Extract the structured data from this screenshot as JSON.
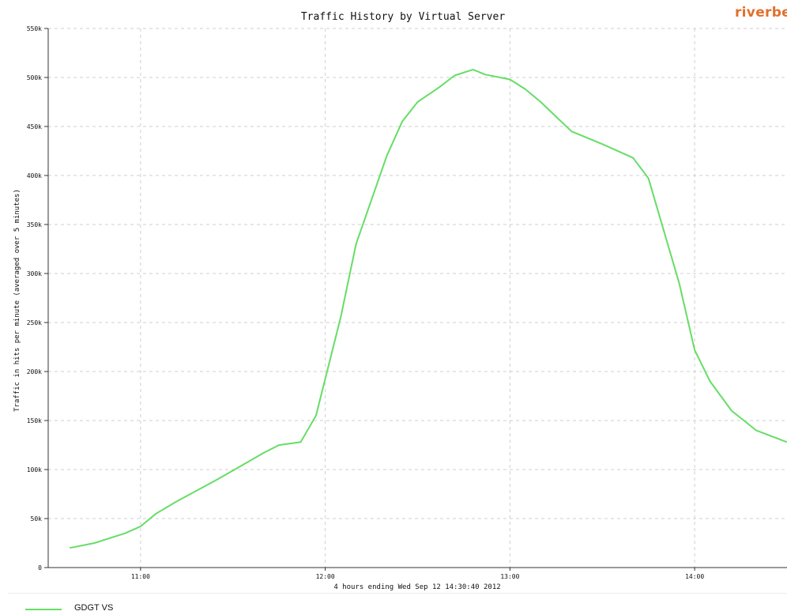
{
  "brand": "riverbed",
  "chart_data": {
    "type": "line",
    "title": "Traffic History by Virtual Server",
    "ylabel": "Traffic in hits per minute (averaged over 5 minutes)",
    "xlabel": "4 hours ending Wed Sep 12 14:30:40 2012",
    "ylim": [
      0,
      550000
    ],
    "xlim": [
      "10:30",
      "14:30"
    ],
    "y_ticks": [
      {
        "value": 0,
        "label": "0"
      },
      {
        "value": 50000,
        "label": "50k"
      },
      {
        "value": 100000,
        "label": "100k"
      },
      {
        "value": 150000,
        "label": "150k"
      },
      {
        "value": 200000,
        "label": "200k"
      },
      {
        "value": 250000,
        "label": "250k"
      },
      {
        "value": 300000,
        "label": "300k"
      },
      {
        "value": 350000,
        "label": "350k"
      },
      {
        "value": 400000,
        "label": "400k"
      },
      {
        "value": 450000,
        "label": "450k"
      },
      {
        "value": 500000,
        "label": "500k"
      },
      {
        "value": 550000,
        "label": "550k"
      }
    ],
    "x_ticks": [
      {
        "value": "11:00",
        "label": "11:00"
      },
      {
        "value": "12:00",
        "label": "12:00"
      },
      {
        "value": "13:00",
        "label": "13:00"
      },
      {
        "value": "14:00",
        "label": "14:00"
      }
    ],
    "grid": true,
    "legend": "bottom-left",
    "series": [
      {
        "name": "GDGT VS",
        "color": "#66dd66",
        "points": [
          [
            "10:37",
            20000
          ],
          [
            "10:45",
            25000
          ],
          [
            "10:55",
            35000
          ],
          [
            "11:00",
            42000
          ],
          [
            "11:05",
            55000
          ],
          [
            "11:12",
            68000
          ],
          [
            "11:25",
            90000
          ],
          [
            "11:35",
            108000
          ],
          [
            "11:40",
            117000
          ],
          [
            "11:45",
            125000
          ],
          [
            "11:52",
            128000
          ],
          [
            "11:57",
            155000
          ],
          [
            "12:05",
            255000
          ],
          [
            "12:10",
            330000
          ],
          [
            "12:20",
            420000
          ],
          [
            "12:25",
            455000
          ],
          [
            "12:30",
            475000
          ],
          [
            "12:37",
            490000
          ],
          [
            "12:42",
            502000
          ],
          [
            "12:48",
            508000
          ],
          [
            "12:52",
            503000
          ],
          [
            "13:00",
            498000
          ],
          [
            "13:05",
            488000
          ],
          [
            "13:10",
            475000
          ],
          [
            "13:15",
            460000
          ],
          [
            "13:20",
            445000
          ],
          [
            "13:30",
            432000
          ],
          [
            "13:40",
            418000
          ],
          [
            "13:45",
            397000
          ],
          [
            "13:55",
            290000
          ],
          [
            "14:00",
            222000
          ],
          [
            "14:05",
            190000
          ],
          [
            "14:12",
            160000
          ],
          [
            "14:20",
            140000
          ],
          [
            "14:30",
            128000
          ]
        ]
      }
    ]
  }
}
